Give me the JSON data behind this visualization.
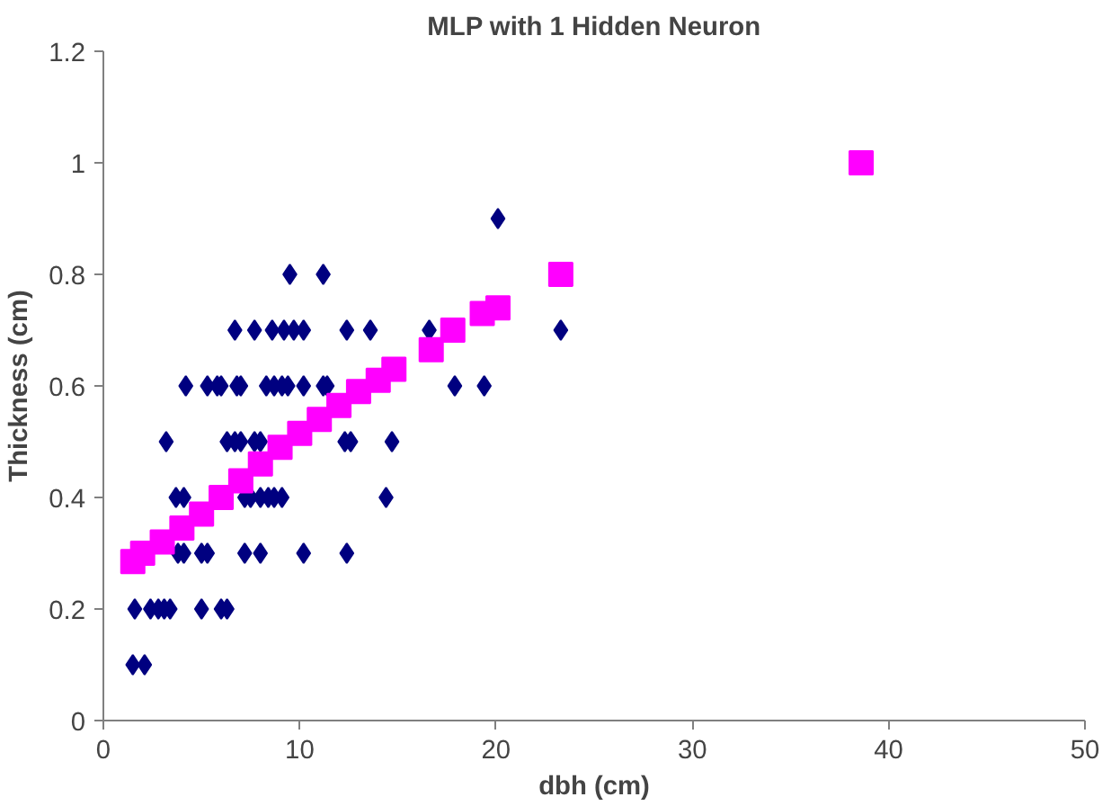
{
  "chart_data": {
    "type": "scatter",
    "title": "MLP with 1 Hidden Neuron",
    "xlabel": "dbh (cm)",
    "ylabel": "Thickness (cm)",
    "xlim": [
      0,
      50
    ],
    "xticks": [
      0,
      10,
      20,
      30,
      40,
      50
    ],
    "ylim": [
      0,
      1.2
    ],
    "yticks": [
      0,
      0.2,
      0.4,
      0.6,
      0.8,
      1,
      1.2
    ],
    "grid": false,
    "series": [
      {
        "color": "#000080",
        "marker": "diamond",
        "x": [
          9.5,
          11.2,
          6.7,
          7.7,
          8.6,
          9.2,
          9.7,
          10.2,
          12.4,
          13.6,
          16.6,
          23.3,
          20.1,
          4.2,
          5.3,
          5.8,
          6.0,
          6.8,
          7.0,
          8.3,
          8.7,
          9.1,
          9.4,
          10.2,
          11.2,
          11.4,
          17.9,
          19.4,
          3.2,
          6.3,
          6.7,
          7.0,
          7.7,
          8.0,
          12.3,
          12.6,
          14.7,
          3.7,
          4.1,
          7.2,
          7.5,
          8.0,
          8.4,
          8.7,
          9.1,
          14.4,
          3.8,
          4.1,
          5.0,
          5.3,
          7.2,
          8.0,
          10.2,
          12.4,
          1.6,
          2.4,
          2.8,
          3.1,
          3.4,
          5.0,
          6.0,
          6.3,
          1.5,
          2.1
        ],
        "values": [
          0.8,
          0.8,
          0.7,
          0.7,
          0.7,
          0.7,
          0.7,
          0.7,
          0.7,
          0.7,
          0.7,
          0.7,
          0.9,
          0.6,
          0.6,
          0.6,
          0.6,
          0.6,
          0.6,
          0.6,
          0.6,
          0.6,
          0.6,
          0.6,
          0.6,
          0.6,
          0.6,
          0.6,
          0.5,
          0.5,
          0.5,
          0.5,
          0.5,
          0.5,
          0.5,
          0.5,
          0.5,
          0.4,
          0.4,
          0.4,
          0.4,
          0.4,
          0.4,
          0.4,
          0.4,
          0.4,
          0.3,
          0.3,
          0.3,
          0.3,
          0.3,
          0.3,
          0.3,
          0.3,
          0.2,
          0.2,
          0.2,
          0.2,
          0.2,
          0.2,
          0.2,
          0.2,
          0.1,
          0.1
        ]
      },
      {
        "color": "#ff00ff",
        "marker": "square",
        "x": [
          1.5,
          2,
          3,
          4,
          5,
          6,
          7,
          8,
          9,
          10,
          11,
          12,
          13,
          14,
          14.8,
          16.7,
          17.8,
          19.3,
          20.1,
          23.3,
          38.6
        ],
        "values": [
          0.285,
          0.3,
          0.32,
          0.345,
          0.37,
          0.4,
          0.43,
          0.46,
          0.49,
          0.515,
          0.54,
          0.565,
          0.59,
          0.61,
          0.63,
          0.665,
          0.7,
          0.73,
          0.74,
          0.8,
          1.0
        ]
      }
    ]
  }
}
